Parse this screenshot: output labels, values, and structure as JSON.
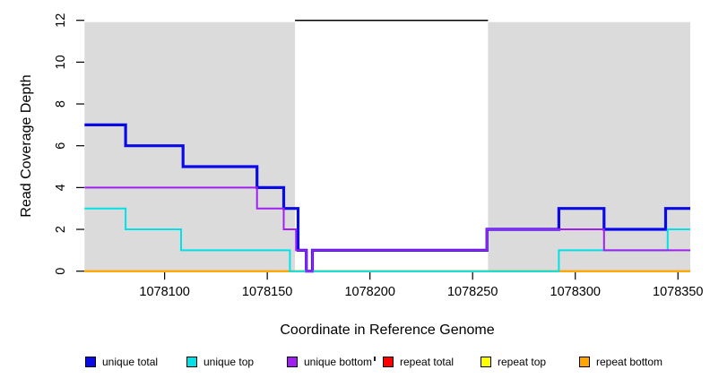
{
  "figure": {
    "background": "#FFFFFF",
    "plot_background": "#FFFFFF"
  },
  "chart_data": {
    "type": "line",
    "subtype": "step-coverage-plot",
    "title": "",
    "xlabel": "Coordinate in Reference Genome",
    "ylabel": "Read Coverage Depth",
    "xlim": [
      1078061,
      1078356
    ],
    "ylim": [
      0,
      12
    ],
    "x_ticks": [
      1078100,
      1078150,
      1078200,
      1078250,
      1078300,
      1078350
    ],
    "y_ticks": [
      0,
      2,
      4,
      6,
      8,
      10,
      12
    ],
    "grid": false,
    "shaded_regions": [
      {
        "name": "repeat-region-left",
        "x0": 1078061,
        "x1": 1078163.5,
        "color": "#DBDBDB"
      },
      {
        "name": "repeat-region-right",
        "x0": 1078257.5,
        "x1": 1078356,
        "color": "#DBDBDB"
      }
    ],
    "top_boundary_segment": {
      "x0": 1078163.5,
      "x1": 1078257.5,
      "y": 12,
      "color": "#000000"
    },
    "series": [
      {
        "name": "repeat total",
        "color": "#FF0000",
        "line_width": 2,
        "steps": [
          [
            1078061,
            0
          ],
          [
            1078356,
            0
          ]
        ]
      },
      {
        "name": "repeat top",
        "color": "#FFFF00",
        "line_width": 2,
        "steps": [
          [
            1078061,
            0
          ],
          [
            1078356,
            0
          ]
        ]
      },
      {
        "name": "repeat bottom",
        "color": "#FFA500",
        "line_width": 2,
        "steps": [
          [
            1078061,
            0
          ],
          [
            1078356,
            0
          ]
        ]
      },
      {
        "name": "unique total",
        "color": "#0A0AE6",
        "line_width": 3.2,
        "steps": [
          [
            1078061,
            7
          ],
          [
            1078081,
            6
          ],
          [
            1078109,
            5
          ],
          [
            1078145,
            4
          ],
          [
            1078158,
            3
          ],
          [
            1078165,
            1
          ],
          [
            1078169,
            0
          ],
          [
            1078172,
            1
          ],
          [
            1078257,
            2
          ],
          [
            1078292,
            3
          ],
          [
            1078314,
            2
          ],
          [
            1078344,
            3
          ],
          [
            1078356,
            3
          ]
        ]
      },
      {
        "name": "unique top",
        "color": "#00E1E8",
        "line_width": 2,
        "steps": [
          [
            1078061,
            3
          ],
          [
            1078081,
            2
          ],
          [
            1078108,
            1
          ],
          [
            1078161,
            0
          ],
          [
            1078292,
            1
          ],
          [
            1078345,
            2
          ],
          [
            1078356,
            2
          ]
        ]
      },
      {
        "name": "unique bottom",
        "color": "#A020F0",
        "line_width": 2,
        "steps": [
          [
            1078061,
            4
          ],
          [
            1078145,
            3
          ],
          [
            1078158,
            2
          ],
          [
            1078164,
            1
          ],
          [
            1078169,
            0
          ],
          [
            1078172,
            1
          ],
          [
            1078257,
            2
          ],
          [
            1078314,
            1
          ],
          [
            1078356,
            1
          ]
        ]
      }
    ],
    "legend": {
      "position": "bottom",
      "items": [
        {
          "label": "unique total",
          "color": "#0A0AE6"
        },
        {
          "label": "unique top",
          "color": "#00E1E8"
        },
        {
          "label": "unique bottom",
          "color": "#A020F0"
        },
        {
          "label": "repeat total",
          "color": "#FF0000"
        },
        {
          "label": "repeat top",
          "color": "#FFFF00"
        },
        {
          "label": "repeat bottom",
          "color": "#FFA500"
        }
      ]
    }
  }
}
